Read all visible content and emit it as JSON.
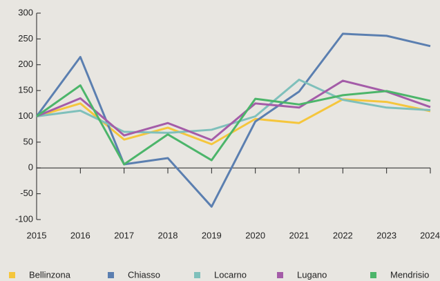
{
  "chart_data": {
    "type": "line",
    "x": [
      2015,
      2016,
      2017,
      2018,
      2019,
      2020,
      2021,
      2022,
      2023,
      2024
    ],
    "xlim": [
      2015,
      2024
    ],
    "xticks": [
      2015,
      2016,
      2017,
      2018,
      2019,
      2020,
      2021,
      2022,
      2023,
      2024
    ],
    "ylim": [
      -100,
      300
    ],
    "yticks": [
      -100,
      -50,
      0,
      50,
      100,
      150,
      200,
      250,
      300
    ],
    "legend": "bottom",
    "series": [
      {
        "name": "Bellinzona",
        "color": "#f5c63c",
        "values": [
          100,
          125,
          55,
          78,
          46,
          95,
          87,
          133,
          128,
          110
        ]
      },
      {
        "name": "Chiasso",
        "color": "#5b7fb0",
        "values": [
          100,
          215,
          7,
          19,
          -75,
          90,
          148,
          260,
          256,
          236
        ]
      },
      {
        "name": "Locarno",
        "color": "#7fc0bb",
        "values": [
          100,
          111,
          70,
          68,
          74,
          100,
          171,
          132,
          117,
          112
        ]
      },
      {
        "name": "Lugano",
        "color": "#a45ca8",
        "values": [
          100,
          135,
          63,
          87,
          54,
          125,
          117,
          169,
          148,
          118
        ]
      },
      {
        "name": "Mendrisio",
        "color": "#4cb56a",
        "values": [
          100,
          160,
          7,
          65,
          15,
          134,
          123,
          141,
          149,
          130
        ]
      }
    ]
  }
}
